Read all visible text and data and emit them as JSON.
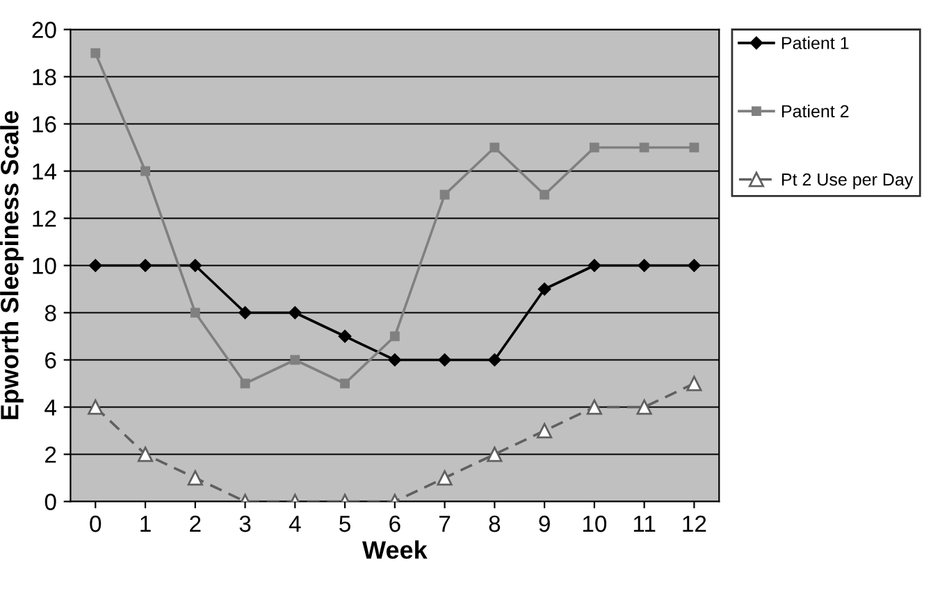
{
  "chart_data": {
    "type": "line",
    "xlabel": "Week",
    "ylabel": "Epworth Sleepiness Scale",
    "categories": [
      "0",
      "1",
      "2",
      "3",
      "4",
      "5",
      "6",
      "7",
      "8",
      "9",
      "10",
      "11",
      "12"
    ],
    "series": [
      {
        "name": "Patient 1",
        "color": "#000000",
        "marker": "diamond",
        "line_style": "solid",
        "values": [
          10,
          10,
          10,
          8,
          8,
          7,
          6,
          6,
          6,
          9,
          10,
          10,
          10
        ]
      },
      {
        "name": "Patient 2",
        "color": "#808080",
        "marker": "square",
        "line_style": "solid",
        "values": [
          19,
          14,
          8,
          5,
          6,
          5,
          7,
          13,
          15,
          13,
          15,
          15,
          15
        ]
      },
      {
        "name": "Pt 2 Use per Day",
        "color": "#606060",
        "marker": "triangle",
        "line_style": "dashed",
        "values": [
          4,
          2,
          1,
          0,
          0,
          0,
          0,
          1,
          2,
          3,
          4,
          4,
          5
        ]
      }
    ],
    "ylim": [
      0,
      20
    ],
    "yticks": [
      0,
      2,
      4,
      6,
      8,
      10,
      12,
      14,
      16,
      18,
      20
    ],
    "grid": "y",
    "legend": "right"
  }
}
